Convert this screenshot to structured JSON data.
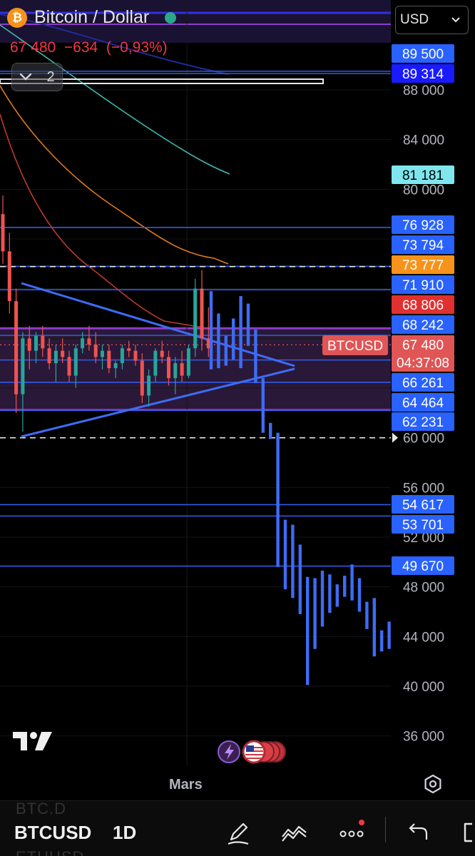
{
  "header": {
    "logo_glyph": "₿",
    "title": "Bitcoin / Dollar",
    "quote": "67 480  −634  (−0,93%)",
    "collapse_count": "2",
    "currency": "USD",
    "accent_down": "#f23645",
    "live_color": "#2aa889"
  },
  "price_axis": {
    "ticks": [
      "88 000",
      "84 000",
      "80 000",
      "60 000",
      "56 000",
      "52 000",
      "48 000",
      "44 000",
      "40 000",
      "36 000"
    ]
  },
  "price_badges": [
    {
      "label": "89 500",
      "color": "#2962ff"
    },
    {
      "label": "89 314",
      "color": "#1a1aff"
    },
    {
      "label": "81 181",
      "color": "#7fe6ee"
    },
    {
      "label": "76 928",
      "color": "#2962ff"
    },
    {
      "label": "73 794",
      "color": "#2962ff"
    },
    {
      "label": "73 777",
      "color": "#f7931a"
    },
    {
      "label": "71 910",
      "color": "#2962ff"
    },
    {
      "label": "68 806",
      "color": "#e03030"
    },
    {
      "label": "68 242",
      "color": "#2962ff"
    },
    {
      "label": "67 480",
      "color": "#e05555"
    },
    {
      "label": "04:37:08",
      "color": "#e05555"
    },
    {
      "label": "66 261",
      "color": "#2962ff"
    },
    {
      "label": "64 464",
      "color": "#2962ff"
    },
    {
      "label": "62 231",
      "color": "#2962ff"
    },
    {
      "label": "54 617",
      "color": "#2962ff"
    },
    {
      "label": "53 701",
      "color": "#2962ff"
    },
    {
      "label": "49 670",
      "color": "#2962ff"
    }
  ],
  "symbol_tag": "BTCUSD",
  "x_axis": {
    "label": "Mars"
  },
  "toolbar": {
    "symbol": "BTCUSD",
    "interval": "1D",
    "ghost_above": "BTC.D",
    "ghost_below": "ETHUSD",
    "icons": [
      "pencil-icon",
      "indicators-icon",
      "more-icon",
      "undo-icon",
      "fullscreen-icon"
    ]
  },
  "chart_data": {
    "type": "candlestick",
    "y_scale": "linear",
    "ylim": [
      33500,
      91500
    ],
    "horizontal_levels": [
      89500,
      89314,
      76928,
      73794,
      71910,
      68242,
      66261,
      64464,
      62231,
      54617,
      53701,
      49670
    ],
    "zones": [
      [
        68806,
        62231
      ]
    ],
    "dashed_levels": [
      73777,
      60000
    ],
    "current_price": 67480,
    "candles_pre_breakdown": [
      [
        78000,
        79500,
        74000,
        75000
      ],
      [
        75000,
        76500,
        70000,
        71000
      ],
      [
        71000,
        72000,
        62000,
        63500
      ],
      [
        63500,
        68500,
        60500,
        68000
      ],
      [
        68000,
        69000,
        65500,
        67000
      ],
      [
        67000,
        68500,
        66000,
        68200
      ],
      [
        68200,
        69000,
        66500,
        67200
      ],
      [
        67200,
        68000,
        65500,
        66000
      ],
      [
        66000,
        67500,
        64500,
        67000
      ],
      [
        67000,
        68000,
        66000,
        66500
      ],
      [
        66500,
        67000,
        64500,
        65000
      ],
      [
        65000,
        67500,
        64000,
        67200
      ],
      [
        67200,
        68500,
        66800,
        68000
      ],
      [
        68000,
        69000,
        67000,
        67500
      ],
      [
        67500,
        68500,
        66000,
        66500
      ],
      [
        66500,
        67500,
        65500,
        67000
      ],
      [
        67000,
        67500,
        65200,
        65600
      ],
      [
        65600,
        66200,
        64800,
        66000
      ],
      [
        66000,
        67500,
        65500,
        67200
      ],
      [
        67200,
        67800,
        66500,
        67000
      ],
      [
        67000,
        67500,
        65800,
        66200
      ],
      [
        66200,
        66800,
        62800,
        63400
      ],
      [
        63400,
        65500,
        62500,
        65000
      ],
      [
        65000,
        67200,
        64500,
        67000
      ],
      [
        67000,
        67800,
        66000,
        66500
      ],
      [
        66500,
        67000,
        64200,
        64800
      ],
      [
        64800,
        66500,
        63500,
        66000
      ],
      [
        66000,
        67000,
        64500,
        65000
      ],
      [
        65000,
        67500,
        64800,
        67200
      ],
      [
        67200,
        72800,
        66500,
        72000
      ],
      [
        72000,
        73500,
        67000,
        68000
      ],
      [
        68000,
        70500,
        66500,
        67200
      ]
    ],
    "bars_post_breakdown": [
      [
        71800,
        65500
      ],
      [
        70000,
        65600
      ],
      [
        68200,
        65800
      ],
      [
        69600,
        66300
      ],
      [
        71400,
        65600
      ],
      [
        70800,
        67400
      ],
      [
        68700,
        64400
      ],
      [
        64800,
        60400
      ],
      [
        61200,
        59900
      ],
      [
        60400,
        49600
      ],
      [
        53400,
        47800
      ],
      [
        53000,
        47100
      ],
      [
        51400,
        45800
      ],
      [
        48800,
        40100
      ],
      [
        48700,
        43000
      ],
      [
        49300,
        44800
      ],
      [
        49000,
        45900
      ],
      [
        48200,
        46400
      ],
      [
        48900,
        47200
      ],
      [
        49800,
        46900
      ],
      [
        48700,
        46000
      ],
      [
        46800,
        44600
      ],
      [
        47100,
        42400
      ],
      [
        44500,
        42800
      ],
      [
        45200,
        43000
      ]
    ]
  }
}
